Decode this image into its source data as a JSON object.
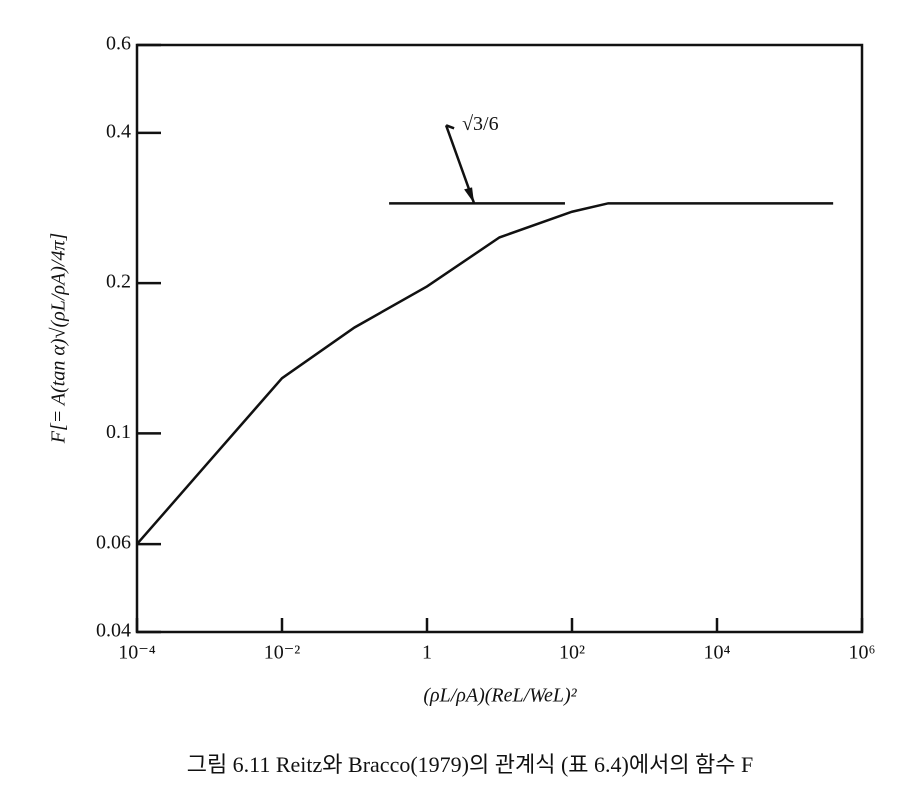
{
  "chart_data": {
    "type": "line",
    "ylabel": "F[= A(tan α)√(ρL/ρA)/4π]",
    "xlabel": "(ρL/ρA)(ReL/WeL)²",
    "caption": "그림 6.11  Reitz와 Bracco(1979)의 관계식 (표 6.4)에서의 함수 F",
    "log_x": true,
    "log_y": true,
    "xlim": [
      0.0001,
      1000000
    ],
    "xticks": [
      {
        "value": 0.0001,
        "label": "10⁻⁴"
      },
      {
        "value": 0.01,
        "label": "10⁻²"
      },
      1,
      {
        "value": 100,
        "label": "10²"
      },
      {
        "value": 10000,
        "label": "10⁴"
      },
      {
        "value": 1000000,
        "label": "10⁶"
      }
    ],
    "ylim": [
      0.04,
      0.6
    ],
    "yticks": [
      0.04,
      0.06,
      0.1,
      0.2,
      0.4,
      0.6
    ],
    "x": [
      0.0001,
      0.001,
      0.01,
      0.1,
      1,
      10,
      100,
      316,
      1000,
      10000,
      100000,
      400000
    ],
    "series": [
      {
        "color": "#111111",
        "values": [
          0.06,
          0.088,
          0.129,
          0.163,
          0.197,
          0.247,
          0.278,
          0.289,
          0.289,
          0.289,
          0.289,
          0.289
        ]
      }
    ],
    "reference_line": {
      "x": [
        0.3,
        80
      ],
      "y": 0.289,
      "label": "√3/6"
    }
  }
}
